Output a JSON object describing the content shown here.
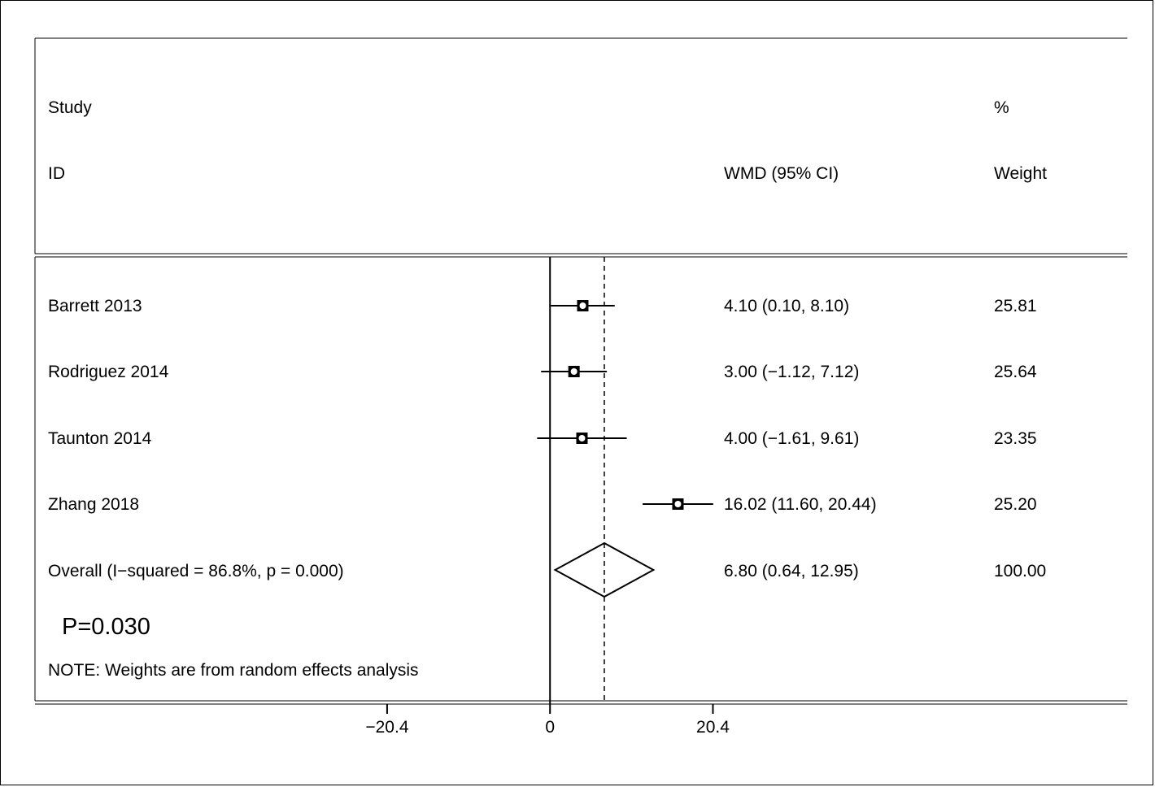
{
  "chart_data": {
    "type": "forest",
    "header": {
      "study_top": "Study",
      "study_bottom": "ID",
      "effect_label": "WMD (95% CI)",
      "weight_top": "%",
      "weight_bottom": "Weight"
    },
    "studies": [
      {
        "name": "Barrett 2013",
        "estimate": 4.1,
        "lower": 0.1,
        "upper": 8.1,
        "ci_text": "4.10 (0.10, 8.10)",
        "weight": "25.81"
      },
      {
        "name": "Rodriguez 2014",
        "estimate": 3.0,
        "lower": -1.12,
        "upper": 7.12,
        "ci_text": "3.00 (−1.12, 7.12)",
        "weight": "25.64"
      },
      {
        "name": "Taunton 2014",
        "estimate": 4.0,
        "lower": -1.61,
        "upper": 9.61,
        "ci_text": "4.00 (−1.61, 9.61)",
        "weight": "23.35"
      },
      {
        "name": "Zhang 2018",
        "estimate": 16.02,
        "lower": 11.6,
        "upper": 20.44,
        "ci_text": "16.02 (11.60, 20.44)",
        "weight": "25.20"
      }
    ],
    "overall": {
      "label": "Overall  (I−squared = 86.8%, p = 0.000)",
      "estimate": 6.8,
      "lower": 0.64,
      "upper": 12.95,
      "ci_text": "6.80 (0.64, 12.95)",
      "weight": "100.00"
    },
    "p_value_text": "P=0.030",
    "note": "NOTE: Weights are from random effects analysis",
    "x_ticks": [
      {
        "value": -20.4,
        "label": "−20.4"
      },
      {
        "value": 0,
        "label": "0"
      },
      {
        "value": 20.4,
        "label": "20.4"
      }
    ],
    "xlim": [
      -64.5,
      72.3
    ],
    "null_line": 0,
    "pooled_reference_line": 6.8
  }
}
